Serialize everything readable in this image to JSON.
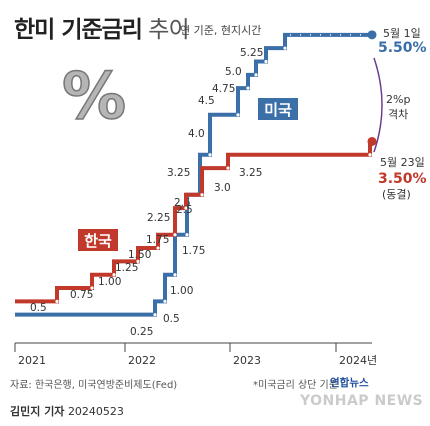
{
  "header": {
    "title_bold": "한미 기준금리",
    "title_light": " 추이",
    "subtitle": "연 기준, 현지시간"
  },
  "footer": {
    "source": "자료: 한국은행, 미국연방준비제도(Fed)",
    "note": "*미국금리 상단 기준",
    "author": "김민지 기자",
    "date": "20240523",
    "logo": "연합뉴스",
    "watermark": "YONHAP NEWS"
  },
  "decor": {
    "percent_glyph": "%"
  },
  "chart_data": {
    "type": "line",
    "xlabel": "",
    "ylabel": "",
    "x_ticks": [
      "2021",
      "2022",
      "2023",
      "2024년"
    ],
    "colors": {
      "usa": "#3a6fa8",
      "korea": "#c0392b",
      "bracket": "#6a3b8c"
    },
    "series": [
      {
        "name": "미국",
        "color": "#3a6fa8",
        "values": [
          0.25,
          0.5,
          1.0,
          1.75,
          2.5,
          3.25,
          4.0,
          4.5,
          4.75,
          5.0,
          5.25,
          5.5
        ],
        "labels": [
          "0.25",
          "0.5",
          "1.00",
          "1.75",
          "2.5",
          "3.25",
          "4.0",
          "4.5",
          "4.75",
          "5.0",
          "5.25",
          ""
        ]
      },
      {
        "name": "한국",
        "color": "#c0392b",
        "values": [
          0.5,
          0.75,
          1.0,
          1.25,
          1.5,
          1.75,
          2.25,
          2.5,
          3.0,
          3.25,
          3.5
        ],
        "labels": [
          "0.5",
          "0.75",
          "1.00",
          "1.25",
          "1.50",
          "1.75",
          "2.25",
          "2.5",
          "3.0",
          "3.25",
          ""
        ]
      }
    ],
    "annotations": [
      {
        "series": "미국",
        "date_label": "5월 1일",
        "value_label": "5.50%"
      },
      {
        "series": "한국",
        "date_label": "5월 23일",
        "value_label": "3.50%",
        "sub_label": "(동결)"
      },
      {
        "text_line1": "2%p",
        "text_line2": "격차"
      }
    ]
  }
}
